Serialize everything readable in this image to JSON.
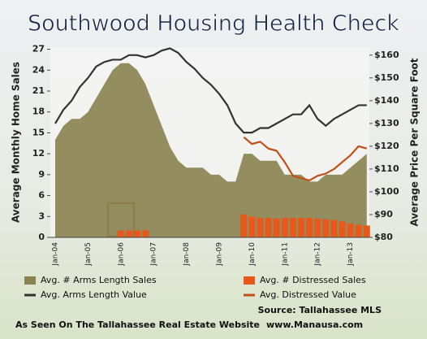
{
  "chart_data": {
    "type": "area-bar-line",
    "title": "Southwood Housing Health Check",
    "y_label": "Average Monthly Home Sales",
    "y2_label": "Average Price Per Square Foot",
    "categories": [
      "Jan-04",
      null,
      null,
      null,
      "Jan-05",
      null,
      null,
      null,
      "Jan-06",
      null,
      null,
      null,
      "Jan-07",
      null,
      null,
      null,
      "Jan-08",
      null,
      null,
      null,
      "Jan-09",
      null,
      null,
      null,
      "Jan-10",
      null,
      null,
      null,
      "Jan-11",
      null,
      null,
      null,
      "Jan-12",
      null,
      null,
      null,
      "Jan-13",
      null,
      null
    ],
    "ylim": [
      0,
      27.3
    ],
    "yticks": [
      0,
      3,
      6,
      9,
      12,
      15,
      18,
      21,
      24,
      27
    ],
    "y2lim": [
      80,
      163.5
    ],
    "y2ticks": [
      {
        "value": 80,
        "label": "$80"
      },
      {
        "value": 90,
        "label": "$90"
      },
      {
        "value": 100,
        "label": "$100"
      },
      {
        "value": 110,
        "label": "$110"
      },
      {
        "value": 120,
        "label": "$120"
      },
      {
        "value": 130,
        "label": "$130"
      },
      {
        "value": 140,
        "label": "$140"
      },
      {
        "value": 150,
        "label": "$150"
      },
      {
        "value": 160,
        "label": "$160"
      }
    ],
    "series": [
      {
        "name": "Avg. # Arms Length Sales",
        "kind": "area",
        "color": "#8a8250",
        "values": [
          14,
          16,
          17,
          17,
          18,
          20,
          22,
          24,
          25,
          25,
          24,
          22,
          19,
          16,
          13,
          11,
          10,
          10,
          10,
          9,
          9,
          8,
          8,
          12,
          12,
          11,
          11,
          11,
          9,
          9,
          9,
          8,
          8,
          9,
          9,
          9,
          10,
          11,
          12
        ]
      },
      {
        "name": "Avg. # Distressed Sales",
        "kind": "bar",
        "color": "#e8581a",
        "values": [
          null,
          null,
          null,
          null,
          null,
          null,
          null,
          null,
          1,
          1,
          1,
          1,
          null,
          null,
          null,
          null,
          null,
          null,
          null,
          null,
          null,
          null,
          null,
          3.3,
          3,
          2.8,
          2.8,
          2.7,
          2.8,
          2.8,
          2.8,
          2.8,
          2.7,
          2.6,
          2.5,
          2.3,
          2,
          1.8,
          1.7
        ]
      },
      {
        "name": "Avg. Arms Length Value",
        "kind": "line",
        "axis": "y2",
        "color": "#333333",
        "values": [
          130,
          136,
          140,
          146,
          150,
          155,
          157,
          158,
          158,
          160,
          160,
          159,
          160,
          162,
          163,
          161,
          157,
          154,
          150,
          147,
          143,
          138,
          130,
          126,
          126,
          128,
          128,
          130,
          132,
          134,
          134,
          138,
          132,
          129,
          132,
          134,
          136,
          138,
          138
        ]
      },
      {
        "name": "Avg. Distressed Value",
        "kind": "line",
        "axis": "y2",
        "color": "#c0501a",
        "values": [
          null,
          null,
          null,
          null,
          null,
          null,
          null,
          null,
          null,
          null,
          null,
          null,
          null,
          null,
          null,
          null,
          null,
          null,
          null,
          null,
          null,
          null,
          null,
          124,
          121,
          122,
          119,
          118,
          113,
          107,
          106,
          105,
          107,
          108,
          110,
          113,
          116,
          120,
          119
        ]
      }
    ],
    "source": "Source: Tallahassee MLS",
    "footer": "As Seen On The Tallahassee Real Estate Website",
    "website": "www.Manausa.com"
  }
}
